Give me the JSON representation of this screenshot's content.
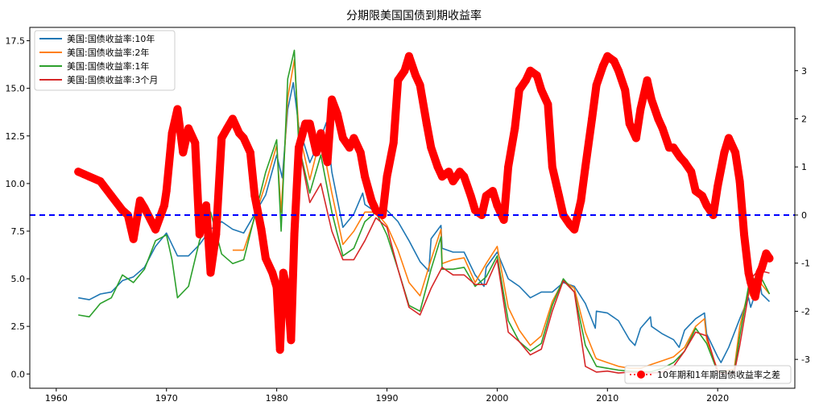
{
  "chart_data": {
    "type": "line",
    "title": "分期限美国国债到期收益率",
    "xlabel": "",
    "ylabel": "",
    "y2label": "",
    "xlim": [
      1957.6,
      2027.0
    ],
    "ylim": [
      -0.75,
      18.2
    ],
    "y2lim": [
      -3.6,
      3.9
    ],
    "xticks": [
      1960,
      1970,
      1980,
      1990,
      2000,
      2010,
      2020
    ],
    "yticks": [
      "0.0",
      "2.5",
      "5.0",
      "7.5",
      "10.0",
      "12.5",
      "15.0",
      "17.5"
    ],
    "y2ticks": [
      "-3",
      "-2",
      "-1",
      "0",
      "1",
      "2",
      "3"
    ],
    "legend_left": "upper-left",
    "legend_right": "lower-right",
    "hline_right_axis": 0,
    "hline_color": "#0000ff",
    "series": [
      {
        "name": "美国:国债收益率:10年",
        "color": "#1f77b4",
        "axis": "left",
        "x": [
          1962,
          1963,
          1964,
          1965,
          1966,
          1967,
          1968,
          1969,
          1970,
          1971,
          1972,
          1973,
          1974,
          1975,
          1976,
          1977,
          1978,
          1979,
          1980,
          1980.5,
          1981,
          1981.5,
          1982,
          1983,
          1984,
          1984.5,
          1985,
          1986,
          1987,
          1987.8,
          1988,
          1989,
          1990,
          1991,
          1992,
          1993,
          1993.8,
          1994,
          1994.9,
          1995,
          1996,
          1997,
          1998,
          1998.8,
          1999,
          2000,
          2001,
          2002,
          2003,
          2004,
          2005,
          2006,
          2007,
          2008,
          2008.9,
          2009,
          2010,
          2011,
          2011.9,
          2012,
          2012.5,
          2013,
          2013.9,
          2014,
          2015,
          2016,
          2016.5,
          2017,
          2018,
          2018.8,
          2019,
          2020,
          2020.3,
          2021,
          2022,
          2022.8,
          2023,
          2023.8,
          2024,
          2024.7
        ],
        "y": [
          4.0,
          3.9,
          4.2,
          4.3,
          4.9,
          5.1,
          5.6,
          6.7,
          7.4,
          6.2,
          6.2,
          6.8,
          7.6,
          8.0,
          7.6,
          7.4,
          8.4,
          9.4,
          11.5,
          10.3,
          13.9,
          15.3,
          13.0,
          11.1,
          12.4,
          13.2,
          10.6,
          7.7,
          8.4,
          9.5,
          8.9,
          8.5,
          8.6,
          8.0,
          7.0,
          5.9,
          5.4,
          7.1,
          7.8,
          6.6,
          6.4,
          6.4,
          5.2,
          4.6,
          5.6,
          6.4,
          5.0,
          4.6,
          4.0,
          4.3,
          4.3,
          4.8,
          4.6,
          3.7,
          2.4,
          3.3,
          3.2,
          2.8,
          1.9,
          1.8,
          1.5,
          2.4,
          3.0,
          2.5,
          2.1,
          1.8,
          1.4,
          2.3,
          2.9,
          3.2,
          2.1,
          0.9,
          0.6,
          1.4,
          2.9,
          4.0,
          3.5,
          4.9,
          4.2,
          3.8
        ]
      },
      {
        "name": "美国:国债收益率:2年",
        "color": "#ff7f0e",
        "axis": "left",
        "x": [
          1976,
          1977,
          1978,
          1979,
          1980,
          1980.4,
          1981,
          1981.6,
          1982,
          1983,
          1984,
          1985,
          1986,
          1987,
          1988,
          1989,
          1990,
          1991,
          1992,
          1993,
          1994,
          1994.9,
          1995,
          1996,
          1997,
          1998,
          1999,
          2000,
          2001,
          2002,
          2003,
          2004,
          2005,
          2006,
          2007,
          2008,
          2008.9,
          2009,
          2010,
          2011,
          2012,
          2013,
          2014,
          2015,
          2016,
          2017,
          2018,
          2018.8,
          2019,
          2020,
          2020.3,
          2021,
          2021.5,
          2022,
          2022.8,
          2023,
          2023.8,
          2024,
          2024.7
        ],
        "y": [
          6.5,
          6.5,
          8.2,
          10.0,
          12.0,
          8.5,
          14.5,
          16.5,
          12.8,
          10.2,
          12.5,
          9.5,
          6.8,
          7.5,
          8.5,
          8.5,
          7.8,
          6.5,
          4.8,
          4.1,
          6.0,
          7.6,
          5.8,
          6.0,
          6.1,
          4.8,
          5.8,
          6.7,
          3.5,
          2.3,
          1.5,
          2.0,
          3.8,
          4.9,
          4.5,
          2.2,
          0.9,
          0.8,
          0.6,
          0.4,
          0.3,
          0.3,
          0.5,
          0.7,
          0.9,
          1.4,
          2.5,
          2.9,
          1.8,
          0.2,
          0.1,
          0.2,
          0.25,
          2.5,
          4.4,
          4.1,
          5.1,
          4.7,
          4.2
        ]
      },
      {
        "name": "美国:国债收益率:1年",
        "color": "#2ca02c",
        "axis": "left",
        "x": [
          1962,
          1963,
          1964,
          1965,
          1966,
          1967,
          1968,
          1969,
          1970,
          1970.5,
          1971,
          1972,
          1973,
          1974,
          1975,
          1976,
          1977,
          1978,
          1979,
          1980,
          1980.4,
          1981,
          1981.6,
          1982,
          1983,
          1984,
          1985,
          1986,
          1987,
          1988,
          1989,
          1990,
          1991,
          1992,
          1993,
          1994,
          1994.9,
          1995,
          1996,
          1997,
          1998,
          1999,
          2000,
          2001,
          2002,
          2003,
          2004,
          2005,
          2006,
          2007,
          2008,
          2009,
          2010,
          2011,
          2012,
          2013,
          2014,
          2015,
          2016,
          2017,
          2018,
          2019,
          2020,
          2020.3,
          2021,
          2021.5,
          2022,
          2022.8,
          2023,
          2023.8,
          2024,
          2024.7
        ],
        "y": [
          3.1,
          3.0,
          3.7,
          4.0,
          5.2,
          4.8,
          5.5,
          7.0,
          7.3,
          6.0,
          4.0,
          4.6,
          7.0,
          8.5,
          6.3,
          5.8,
          6.0,
          8.3,
          10.6,
          12.3,
          7.5,
          15.5,
          17.0,
          12.0,
          9.5,
          11.5,
          8.5,
          6.2,
          6.6,
          8.0,
          8.5,
          7.3,
          5.5,
          3.6,
          3.3,
          5.5,
          7.2,
          5.5,
          5.5,
          5.6,
          4.6,
          5.1,
          6.2,
          2.8,
          1.7,
          1.2,
          1.6,
          3.6,
          5.0,
          4.3,
          1.5,
          0.4,
          0.3,
          0.2,
          0.15,
          0.12,
          0.12,
          0.3,
          0.6,
          1.2,
          2.4,
          1.6,
          0.1,
          0.1,
          0.08,
          0.08,
          2.0,
          4.6,
          4.7,
          5.4,
          5.0,
          4.2
        ]
      },
      {
        "name": "美国:国债收益率:3个月",
        "color": "#d62728",
        "axis": "left",
        "x": [
          1982,
          1983,
          1984,
          1985,
          1986,
          1987,
          1988,
          1989,
          1990,
          1991,
          1992,
          1993,
          1994,
          1995,
          1996,
          1997,
          1998,
          1999,
          2000,
          2001,
          2002,
          2003,
          2004,
          2005,
          2006,
          2007,
          2008,
          2009,
          2010,
          2011,
          2012,
          2013,
          2014,
          2015,
          2016,
          2017,
          2018,
          2019,
          2020,
          2020.3,
          2021,
          2021.5,
          2022,
          2022.8,
          2023,
          2023.8,
          2024,
          2024.7
        ],
        "y": [
          12.0,
          9.0,
          10.0,
          7.5,
          6.0,
          6.0,
          7.0,
          8.2,
          7.7,
          5.5,
          3.5,
          3.1,
          4.5,
          5.6,
          5.2,
          5.2,
          4.7,
          4.7,
          6.0,
          2.2,
          1.7,
          1.0,
          1.3,
          3.3,
          4.9,
          4.3,
          0.4,
          0.1,
          0.15,
          0.05,
          0.1,
          0.05,
          0.05,
          0.1,
          0.4,
          1.2,
          2.2,
          2.0,
          0.1,
          0.05,
          0.05,
          0.05,
          1.5,
          4.2,
          5.0,
          5.5,
          5.4,
          5.3
        ]
      },
      {
        "name": "10年期和1年期国债收益率之差",
        "color": "#ff0000",
        "axis": "right",
        "style": "dotted-markers",
        "x": [
          1962,
          1962.5,
          1963,
          1964,
          1965,
          1966,
          1966.5,
          1967,
          1967.6,
          1968,
          1969,
          1969.8,
          1970,
          1970.5,
          1971,
          1971.5,
          1972,
          1972.6,
          1973,
          1973.6,
          1974,
          1974.5,
          1975,
          1975.5,
          1976,
          1976.6,
          1977,
          1977.6,
          1978,
          1978.6,
          1979,
          1979.6,
          1980,
          1980.3,
          1980.6,
          1981,
          1981.3,
          1981.6,
          1982,
          1982.6,
          1983,
          1983.6,
          1984,
          1984.6,
          1985,
          1985.5,
          1986,
          1986.6,
          1987,
          1987.6,
          1988,
          1988.6,
          1989,
          1989.6,
          1990,
          1990.6,
          1991,
          1991.6,
          1992,
          1992.6,
          1993,
          1993.6,
          1994,
          1994.6,
          1995,
          1995.6,
          1996,
          1996.6,
          1997,
          1997.6,
          1998,
          1998.6,
          1999,
          1999.6,
          2000,
          2000.6,
          2001,
          2001.6,
          2002,
          2002.6,
          2003,
          2003.6,
          2004,
          2004.6,
          2005,
          2005.6,
          2006,
          2006.6,
          2007,
          2007.6,
          2008,
          2008.6,
          2009,
          2009.6,
          2010,
          2010.6,
          2011,
          2011.6,
          2012,
          2012.6,
          2013,
          2013.6,
          2014,
          2014.6,
          2015,
          2015.6,
          2016,
          2016.6,
          2017,
          2017.6,
          2018,
          2018.6,
          2019,
          2019.6,
          2020,
          2020.6,
          2021,
          2021.6,
          2022,
          2022.4,
          2022.8,
          2023,
          2023.4,
          2023.8,
          2024,
          2024.4,
          2024.7
        ],
        "y": [
          0.9,
          0.85,
          0.8,
          0.7,
          0.4,
          0.1,
          0.0,
          -0.5,
          0.3,
          0.15,
          -0.3,
          0.2,
          0.5,
          1.7,
          2.2,
          1.3,
          1.8,
          1.5,
          -0.4,
          0.2,
          -1.2,
          -0.4,
          1.6,
          1.8,
          2.0,
          1.7,
          1.6,
          1.3,
          0.4,
          -0.3,
          -0.9,
          -1.2,
          -1.5,
          -2.8,
          -1.2,
          -1.6,
          -2.6,
          -0.4,
          1.4,
          1.9,
          1.9,
          1.3,
          1.7,
          1.1,
          2.4,
          2.1,
          1.6,
          1.4,
          1.6,
          1.3,
          0.8,
          0.3,
          0.1,
          0.0,
          0.8,
          1.5,
          2.8,
          3.0,
          3.3,
          2.9,
          2.7,
          1.9,
          1.4,
          1.0,
          0.8,
          0.9,
          0.7,
          0.9,
          0.8,
          0.4,
          0.1,
          0.0,
          0.4,
          0.5,
          0.2,
          -0.1,
          1.0,
          1.8,
          2.6,
          2.8,
          3.0,
          2.9,
          2.6,
          2.3,
          1.0,
          0.4,
          0.0,
          -0.2,
          -0.3,
          0.3,
          1.0,
          2.0,
          2.7,
          3.1,
          3.3,
          3.2,
          3.0,
          2.6,
          1.9,
          1.6,
          2.2,
          2.8,
          2.4,
          2.0,
          1.8,
          1.4,
          1.4,
          1.2,
          1.1,
          0.9,
          0.5,
          0.4,
          0.2,
          0.0,
          0.6,
          1.3,
          1.6,
          1.3,
          0.7,
          -0.4,
          -1.2,
          -1.4,
          -1.7,
          -1.2,
          -1.1,
          -0.8,
          -0.9
        ]
      }
    ]
  }
}
